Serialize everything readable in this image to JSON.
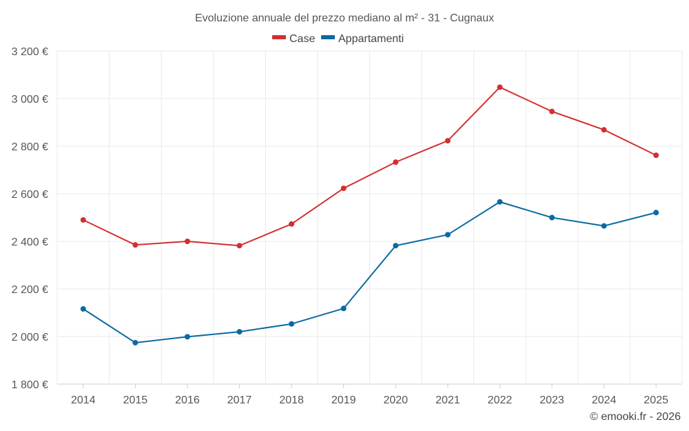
{
  "chart_data": {
    "type": "line",
    "title": "Evoluzione annuale del prezzo mediano al m² - 31 - Cugnaux",
    "xlabel": "",
    "ylabel": "",
    "categories": [
      "2014",
      "2015",
      "2016",
      "2017",
      "2018",
      "2019",
      "2020",
      "2021",
      "2022",
      "2023",
      "2024",
      "2025"
    ],
    "ylim": [
      1800,
      3200
    ],
    "yticks": [
      1800,
      2000,
      2200,
      2400,
      2600,
      2800,
      3000,
      3200
    ],
    "ytick_labels": [
      "1 800 €",
      "2 000 €",
      "2 200 €",
      "2 400 €",
      "2 600 €",
      "2 800 €",
      "3 000 €",
      "3 200 €"
    ],
    "grid": true,
    "legend_position": "top-center",
    "series": [
      {
        "name": "Case",
        "color": "#d32f2f",
        "values": [
          2490,
          2385,
          2400,
          2382,
          2473,
          2623,
          2733,
          2823,
          3048,
          2946,
          2869,
          2762
        ]
      },
      {
        "name": "Appartamenti",
        "color": "#0a6aa1",
        "values": [
          2116,
          1974,
          1999,
          2020,
          2053,
          2118,
          2382,
          2428,
          2566,
          2500,
          2465,
          2521
        ]
      }
    ]
  },
  "footer": "© emooki.fr - 2026"
}
